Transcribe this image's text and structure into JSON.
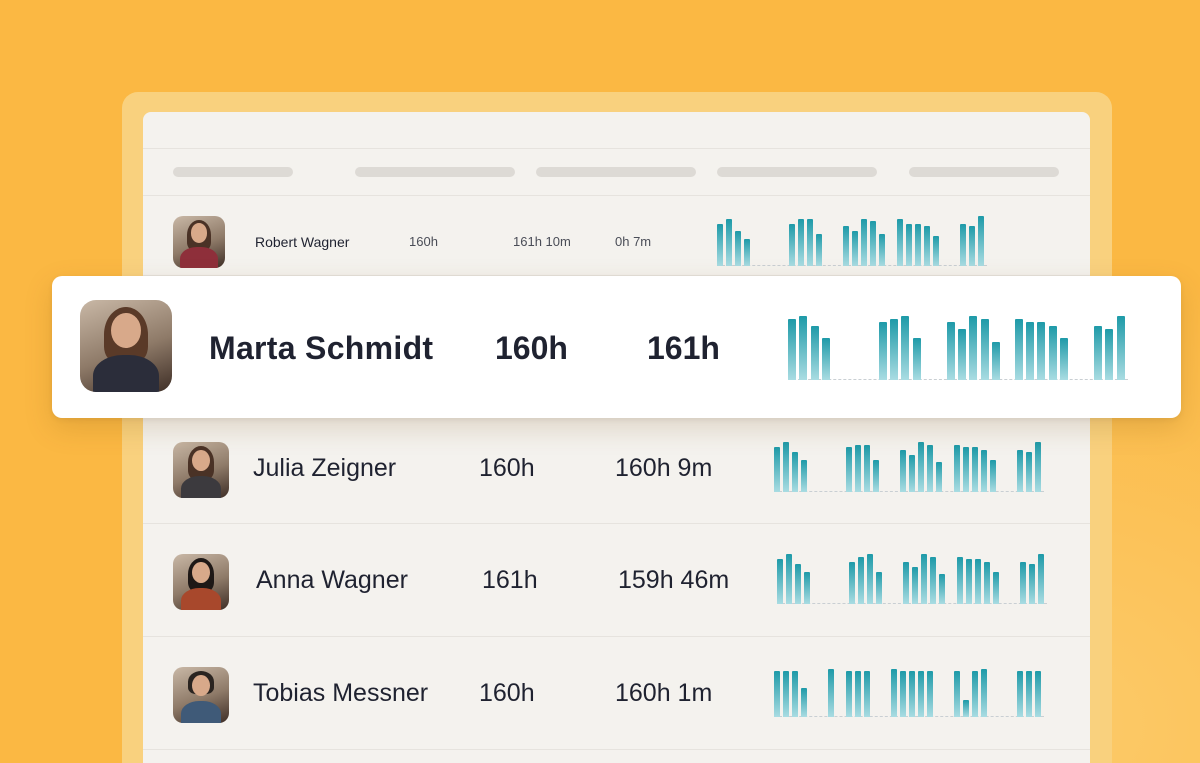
{
  "colors": {
    "background": "#FBB843",
    "bar_dark": "#1E9AA8",
    "bar_light": "#A9DCE2",
    "text": "#1F2230"
  },
  "table": {
    "rows": [
      {
        "name": "Robert Wagner",
        "target": "160h",
        "logged": "161h 10m",
        "overtime": "0h 7m",
        "avatar_icon": "person-photo-icon",
        "bars": [
          0.85,
          0.95,
          0.7,
          0.55,
          0,
          0,
          0,
          0,
          0.85,
          0.95,
          0.95,
          0.65,
          0,
          0,
          0.8,
          0.7,
          0.95,
          0.9,
          0.65,
          0,
          0.95,
          0.85,
          0.85,
          0.8,
          0.6,
          0,
          0,
          0.85,
          0.8,
          1.0
        ]
      },
      {
        "name": "Marta Schmidt",
        "target": "160h",
        "logged": "161h",
        "avatar_icon": "person-photo-icon",
        "bars": [
          0.95,
          1.0,
          0.85,
          0.65,
          0,
          0,
          0,
          0,
          0.9,
          0.95,
          1.0,
          0.65,
          0,
          0,
          0.9,
          0.8,
          1.0,
          0.95,
          0.6,
          0,
          0.95,
          0.9,
          0.9,
          0.85,
          0.65,
          0,
          0,
          0.85,
          0.8,
          1.0
        ]
      },
      {
        "name": "Julia Zeigner",
        "target": "160h",
        "logged": "160h 9m",
        "avatar_icon": "person-photo-icon",
        "bars": [
          0.9,
          1.0,
          0.8,
          0.65,
          0,
          0,
          0,
          0,
          0.9,
          0.95,
          0.95,
          0.65,
          0,
          0,
          0.85,
          0.75,
          1.0,
          0.95,
          0.6,
          0,
          0.95,
          0.9,
          0.9,
          0.85,
          0.65,
          0,
          0,
          0.85,
          0.8,
          1.0
        ]
      },
      {
        "name": "Anna Wagner",
        "target": "161h",
        "logged": "159h 46m",
        "avatar_icon": "person-photo-icon",
        "bars": [
          0.9,
          1.0,
          0.8,
          0.65,
          0,
          0,
          0,
          0,
          0.85,
          0.95,
          1.0,
          0.65,
          0,
          0,
          0.85,
          0.75,
          1.0,
          0.95,
          0.6,
          0,
          0.95,
          0.9,
          0.9,
          0.85,
          0.65,
          0,
          0,
          0.85,
          0.8,
          1.0
        ]
      },
      {
        "name": "Tobias Messner",
        "target": "160h",
        "logged": "160h 1m",
        "avatar_icon": "person-photo-icon",
        "bars": [
          0.95,
          0.95,
          0.95,
          0.6,
          0,
          0,
          1.0,
          0,
          0.95,
          0.95,
          0.95,
          0,
          0,
          1.0,
          0.95,
          0.95,
          0.95,
          0.95,
          0,
          0,
          0.95,
          0.35,
          0.95,
          1.0,
          0,
          0,
          0,
          0.95,
          0.95,
          0.95
        ]
      }
    ]
  }
}
